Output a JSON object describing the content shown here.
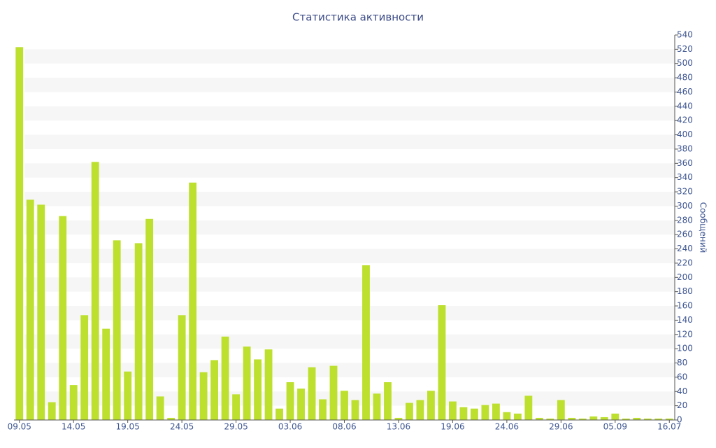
{
  "chart_data": {
    "type": "bar",
    "title": "Статистика активности",
    "y_label": "Сообщений",
    "categories": [
      "09.05",
      null,
      null,
      null,
      null,
      "14.05",
      null,
      null,
      null,
      null,
      "19.05",
      null,
      null,
      null,
      null,
      "24.05",
      null,
      null,
      null,
      null,
      "29.05",
      null,
      null,
      null,
      null,
      "03.06",
      null,
      null,
      null,
      null,
      "08.06",
      null,
      null,
      null,
      null,
      "13.06",
      null,
      null,
      null,
      null,
      "19.06",
      null,
      null,
      null,
      null,
      "24.06",
      null,
      null,
      null,
      null,
      "29.06",
      null,
      null,
      null,
      null,
      "05.09",
      null,
      null,
      null,
      null,
      "16.07"
    ],
    "values": [
      523,
      309,
      302,
      25,
      286,
      49,
      147,
      362,
      128,
      252,
      68,
      248,
      282,
      33,
      3,
      147,
      333,
      67,
      84,
      117,
      36,
      103,
      85,
      99,
      16,
      53,
      44,
      74,
      29,
      76,
      41,
      28,
      217,
      37,
      53,
      3,
      24,
      28,
      41,
      161,
      26,
      18,
      16,
      21,
      23,
      11,
      9,
      34,
      3,
      2,
      28,
      3,
      2,
      5,
      4,
      9,
      2,
      3,
      2,
      2,
      2
    ],
    "color": "#bde02e",
    "ylim": [
      0,
      540
    ],
    "yticks": [
      0,
      20,
      40,
      60,
      80,
      100,
      120,
      140,
      160,
      180,
      200,
      220,
      240,
      260,
      280,
      300,
      320,
      340,
      360,
      380,
      400,
      420,
      440,
      460,
      480,
      500,
      520,
      540
    ],
    "grid": true
  }
}
